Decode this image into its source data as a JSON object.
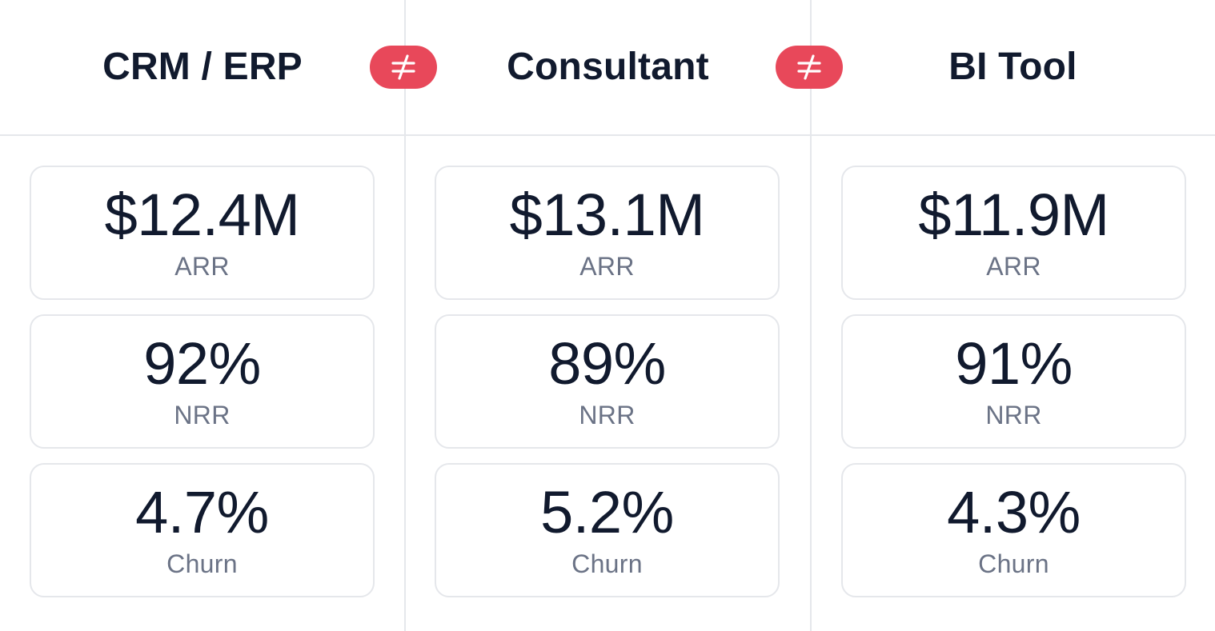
{
  "columns": [
    {
      "title": "CRM / ERP",
      "metrics": [
        {
          "value": "$12.4M",
          "label": "ARR"
        },
        {
          "value": "92%",
          "label": "NRR"
        },
        {
          "value": "4.7%",
          "label": "Churn"
        }
      ]
    },
    {
      "title": "Consultant",
      "metrics": [
        {
          "value": "$13.1M",
          "label": "ARR"
        },
        {
          "value": "89%",
          "label": "NRR"
        },
        {
          "value": "5.2%",
          "label": "Churn"
        }
      ]
    },
    {
      "title": "BI Tool",
      "metrics": [
        {
          "value": "$11.9M",
          "label": "ARR"
        },
        {
          "value": "91%",
          "label": "NRR"
        },
        {
          "value": "4.3%",
          "label": "Churn"
        }
      ]
    }
  ],
  "separators": [
    {
      "icon": "not-equal-icon"
    },
    {
      "icon": "not-equal-icon"
    }
  ],
  "colors": {
    "text": "#111a2e",
    "muted": "#6b7386",
    "border": "#e5e7eb",
    "accent": "#e8485a"
  }
}
